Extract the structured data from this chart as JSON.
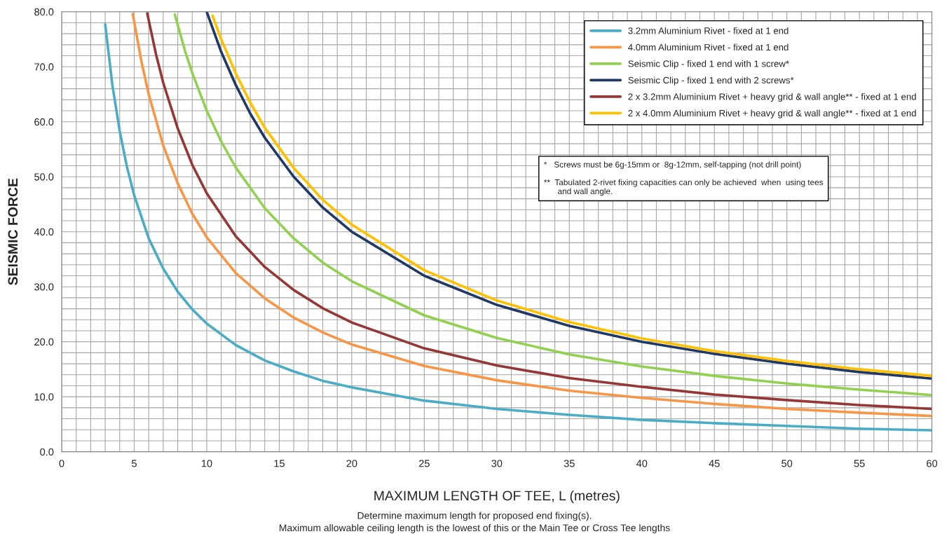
{
  "chart_data": {
    "type": "line",
    "xlabel": "MAXIMUM LENGTH OF TEE, L (metres)",
    "ylabel": "SEISMIC FORCE",
    "annotations": [
      "*   Screws must be 6g-15mm or  8g-12mm, self-tapping (not drill point)\n\n**  Tabulated 2-rivet fixing capacities can only be achieved  when  using tees\n      and wall angle.",
      "Determine maximum length for proposed end fixing(s).",
      "Maximum allowable ceiling length is the lowest of this or the Main Tee or Cross Tee lengths"
    ],
    "xlim": [
      0,
      60
    ],
    "ylim": [
      0,
      80
    ],
    "xticks": [
      0,
      {
        "value": 1,
        "label": null
      },
      {
        "value": 2,
        "label": null
      },
      {
        "value": 3,
        "label": null
      },
      {
        "value": 4,
        "label": null
      },
      5,
      {
        "value": 6,
        "label": null
      },
      {
        "value": 7,
        "label": null
      },
      {
        "value": 8,
        "label": null
      },
      {
        "value": 9,
        "label": null
      },
      10,
      {
        "value": 11,
        "label": null
      },
      {
        "value": 12,
        "label": null
      },
      {
        "value": 13,
        "label": null
      },
      {
        "value": 14,
        "label": null
      },
      15,
      {
        "value": 16,
        "label": null
      },
      {
        "value": 17,
        "label": null
      },
      {
        "value": 18,
        "label": null
      },
      {
        "value": 19,
        "label": null
      },
      20,
      {
        "value": 21,
        "label": null
      },
      {
        "value": 22,
        "label": null
      },
      {
        "value": 23,
        "label": null
      },
      {
        "value": 24,
        "label": null
      },
      25,
      {
        "value": 26,
        "label": null
      },
      {
        "value": 27,
        "label": null
      },
      {
        "value": 28,
        "label": null
      },
      {
        "value": 29,
        "label": null
      },
      30,
      {
        "value": 31,
        "label": null
      },
      {
        "value": 32,
        "label": null
      },
      {
        "value": 33,
        "label": null
      },
      {
        "value": 34,
        "label": null
      },
      35,
      {
        "value": 36,
        "label": null
      },
      {
        "value": 37,
        "label": null
      },
      {
        "value": 38,
        "label": null
      },
      {
        "value": 39,
        "label": null
      },
      40,
      {
        "value": 41,
        "label": null
      },
      {
        "value": 42,
        "label": null
      },
      {
        "value": 43,
        "label": null
      },
      {
        "value": 44,
        "label": null
      },
      45,
      {
        "value": 46,
        "label": null
      },
      {
        "value": 47,
        "label": null
      },
      {
        "value": 48,
        "label": null
      },
      {
        "value": 49,
        "label": null
      },
      50,
      {
        "value": 51,
        "label": null
      },
      {
        "value": 52,
        "label": null
      },
      {
        "value": 53,
        "label": null
      },
      {
        "value": 54,
        "label": null
      },
      55,
      {
        "value": 56,
        "label": null
      },
      {
        "value": 57,
        "label": null
      },
      {
        "value": 58,
        "label": null
      },
      {
        "value": 59,
        "label": null
      },
      60
    ],
    "yticks": [
      {
        "value": 0,
        "label": "0.0"
      },
      {
        "value": 2,
        "label": null
      },
      {
        "value": 4,
        "label": null
      },
      {
        "value": 6,
        "label": null
      },
      {
        "value": 8,
        "label": null
      },
      {
        "value": 10,
        "label": "10.0"
      },
      {
        "value": 12,
        "label": null
      },
      {
        "value": 14,
        "label": null
      },
      {
        "value": 16,
        "label": null
      },
      {
        "value": 18,
        "label": null
      },
      {
        "value": 20,
        "label": "20.0"
      },
      {
        "value": 22,
        "label": null
      },
      {
        "value": 24,
        "label": null
      },
      {
        "value": 26,
        "label": null
      },
      {
        "value": 28,
        "label": null
      },
      {
        "value": 30,
        "label": "30.0"
      },
      {
        "value": 32,
        "label": null
      },
      {
        "value": 34,
        "label": null
      },
      {
        "value": 36,
        "label": null
      },
      {
        "value": 38,
        "label": null
      },
      {
        "value": 40,
        "label": "40.0"
      },
      {
        "value": 42,
        "label": null
      },
      {
        "value": 44,
        "label": null
      },
      {
        "value": 46,
        "label": null
      },
      {
        "value": 48,
        "label": null
      },
      {
        "value": 50,
        "label": "50.0"
      },
      {
        "value": 52,
        "label": null
      },
      {
        "value": 54,
        "label": null
      },
      {
        "value": 56,
        "label": null
      },
      {
        "value": 58,
        "label": null
      },
      {
        "value": 60,
        "label": "60.0"
      },
      {
        "value": 62,
        "label": null
      },
      {
        "value": 64,
        "label": null
      },
      {
        "value": 66,
        "label": null
      },
      {
        "value": 68,
        "label": null
      },
      {
        "value": 70,
        "label": "70.0"
      },
      {
        "value": 72,
        "label": null
      },
      {
        "value": 74,
        "label": null
      },
      {
        "value": 76,
        "label": null
      },
      {
        "value": 78,
        "label": null
      },
      {
        "value": 80,
        "label": "80.0"
      }
    ],
    "grid": true,
    "legend": "top right",
    "marker": "none",
    "line_style": "solid",
    "series": [
      {
        "name": "3.2mm Aluminium Rivet - fixed at 1 end",
        "color": "#4bacc6",
        "x": [
          3,
          3.5,
          4,
          4.5,
          5,
          6,
          7,
          8,
          9,
          10,
          12,
          14,
          16,
          18,
          20,
          25,
          30,
          35,
          40,
          45,
          50,
          55,
          60
        ],
        "values": [
          77.7,
          66.6,
          58.3,
          51.8,
          46.6,
          38.8,
          33.3,
          29.1,
          25.9,
          23.3,
          19.4,
          16.6,
          14.6,
          12.9,
          11.7,
          9.3,
          7.8,
          6.7,
          5.8,
          5.2,
          4.7,
          4.2,
          3.9
        ]
      },
      {
        "name": "4.0mm Aluminium Rivet - fixed at 1 end",
        "color": "#f79646",
        "x": [
          4.9,
          5.5,
          6,
          7,
          8,
          9,
          10,
          12,
          14,
          16,
          18,
          20,
          25,
          30,
          35,
          40,
          45,
          50,
          55,
          60
        ],
        "values": [
          79.6,
          70.9,
          65,
          55.7,
          48.8,
          43.3,
          39,
          32.5,
          27.9,
          24.4,
          21.7,
          19.5,
          15.6,
          13,
          11.1,
          9.8,
          8.7,
          7.8,
          7.1,
          6.5
        ]
      },
      {
        "name": "Seismic Clip - fixed 1 end with 1 screw*",
        "color": "#92d050",
        "x": [
          7.8,
          8.5,
          9,
          10,
          11,
          12,
          14,
          16,
          18,
          20,
          25,
          30,
          35,
          40,
          45,
          50,
          55,
          60
        ],
        "values": [
          79.5,
          72.9,
          68.9,
          62,
          56.4,
          51.7,
          44.3,
          38.8,
          34.4,
          31,
          24.8,
          20.7,
          17.7,
          15.5,
          13.8,
          12.4,
          11.3,
          10.3
        ]
      },
      {
        "name": "Seismic Clip - fixed 1 end with 2 screws*",
        "color": "#1f3864",
        "x": [
          10,
          11,
          12,
          13,
          14,
          16,
          18,
          20,
          25,
          30,
          35,
          40,
          45,
          50,
          55,
          60
        ],
        "values": [
          80,
          72.7,
          66.7,
          61.5,
          57.1,
          50,
          44.4,
          40,
          32,
          26.7,
          22.9,
          20,
          17.8,
          16,
          14.5,
          13.3
        ]
      },
      {
        "name": "2 x 3.2mm Aluminium Rivet + heavy grid & wall angle** - fixed at 1 end",
        "color": "#953735",
        "x": [
          5.9,
          6.5,
          7,
          8,
          9,
          10,
          12,
          14,
          16,
          18,
          20,
          25,
          30,
          35,
          40,
          45,
          50,
          55,
          60
        ],
        "values": [
          79.7,
          72.3,
          67.1,
          58.8,
          52.2,
          47,
          39.2,
          33.6,
          29.4,
          26.1,
          23.5,
          18.8,
          15.7,
          13.4,
          11.8,
          10.4,
          9.4,
          8.5,
          7.8
        ]
      },
      {
        "name": "2 x 4.0mm Aluminium Rivet + heavy grid & wall angle** - fixed at 1 end",
        "color": "#ffc000",
        "x": [
          10.4,
          11,
          12,
          13,
          14,
          16,
          18,
          20,
          25,
          30,
          35,
          40,
          45,
          50,
          55,
          60
        ],
        "values": [
          79.3,
          75,
          68.8,
          63.5,
          58.9,
          51.6,
          45.8,
          41.3,
          33,
          27.5,
          23.6,
          20.6,
          18.3,
          16.5,
          15,
          13.8
        ]
      }
    ]
  }
}
